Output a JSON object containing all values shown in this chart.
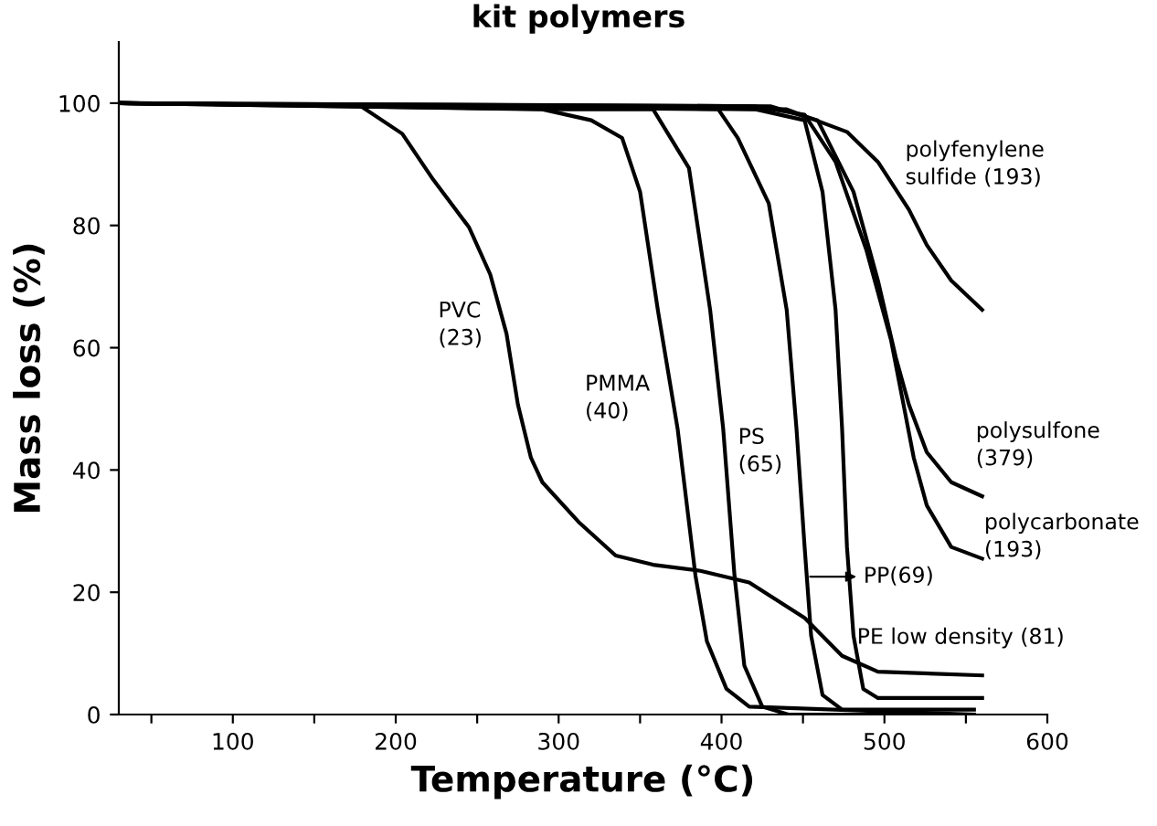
{
  "chart_data": {
    "type": "line",
    "title": "kit polymers",
    "xlabel": "Temperature (°C)",
    "ylabel": "Mass loss (%)",
    "xlim": [
      30,
      600
    ],
    "ylim": [
      0,
      110
    ],
    "xticks": [
      {
        "value": 50,
        "label": null
      },
      100,
      {
        "value": 150,
        "label": null
      },
      200,
      {
        "value": 250,
        "label": null
      },
      300,
      {
        "value": 350,
        "label": null
      },
      400,
      {
        "value": 450,
        "label": null
      },
      500,
      {
        "value": 550,
        "label": null
      },
      600
    ],
    "yticks": [
      0,
      20,
      40,
      60,
      80,
      100
    ],
    "grid": false,
    "legend": false,
    "marker": "none",
    "line_style": "solid",
    "series": [
      {
        "color": "#000000",
        "x": [
          30,
          178,
          204,
          223,
          245,
          258,
          268,
          275,
          283,
          290,
          313,
          335,
          358,
          387,
          417,
          451,
          474,
          496,
          560
        ],
        "values": [
          100,
          99.6,
          95,
          87.5,
          79.7,
          72,
          62.3,
          50.7,
          42,
          38,
          31.3,
          26,
          24.5,
          23.5,
          21.6,
          15.8,
          9.6,
          7,
          6.4
        ]
      },
      {
        "color": "#000000",
        "x": [
          30,
          290,
          320,
          339,
          350,
          361,
          373,
          384,
          391,
          403,
          417,
          555
        ],
        "values": [
          100,
          99,
          97.2,
          94.3,
          85.5,
          66,
          46.8,
          22.7,
          12,
          4.2,
          1.3,
          0
        ]
      },
      {
        "color": "#000000",
        "x": [
          30,
          305,
          358,
          380,
          393,
          401,
          408,
          414,
          425,
          441,
          555
        ],
        "values": [
          100,
          99,
          99,
          89.4,
          66.2,
          46.8,
          22.6,
          8,
          1.3,
          0,
          0
        ]
      },
      {
        "color": "#000000",
        "x": [
          30,
          398,
          410,
          429,
          440,
          446,
          451,
          455,
          462,
          474,
          555
        ],
        "values": [
          100,
          99,
          94.3,
          83.6,
          66.2,
          46.8,
          27.4,
          12.9,
          3.2,
          0.8,
          0.8
        ]
      },
      {
        "color": "#000000",
        "x": [
          30,
          421,
          451,
          462,
          470,
          474,
          477,
          481,
          487,
          496,
          560
        ],
        "values": [
          100,
          99,
          97.2,
          85.5,
          66.2,
          46.8,
          27.4,
          12.9,
          4.2,
          2.7,
          2.7
        ]
      },
      {
        "color": "#000000",
        "x": [
          30,
          420,
          451,
          470,
          489,
          504,
          511,
          518,
          526,
          541,
          560
        ],
        "values": [
          100,
          99.5,
          98.1,
          90.4,
          75.9,
          61.3,
          51.7,
          42,
          34.2,
          27.4,
          25.5
        ]
      },
      {
        "color": "#000000",
        "x": [
          30,
          430,
          459,
          481,
          496,
          507,
          515,
          526,
          541,
          560
        ],
        "values": [
          100,
          99.5,
          97.2,
          85.5,
          71,
          58.4,
          50.7,
          42.9,
          38,
          35.7
        ]
      },
      {
        "color": "#000000",
        "x": [
          30,
          440,
          477,
          496,
          515,
          526,
          541,
          560
        ],
        "values": [
          100,
          99,
          95.3,
          90.4,
          82.6,
          76.8,
          71,
          66.2
        ]
      }
    ],
    "annotations": [
      "PVC\n(23)",
      "PMMA\n(40)",
      "PS\n(65)",
      "polyfenylene\nsulfide (193)",
      "polysulfone\n(379)",
      "polycarbonate\n(193)",
      "PP(69)",
      "PE low density (81)"
    ]
  }
}
